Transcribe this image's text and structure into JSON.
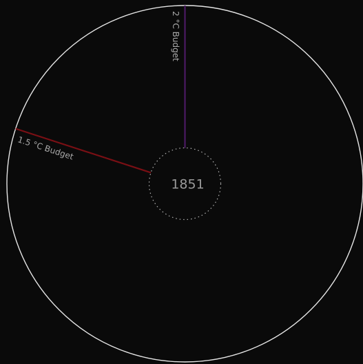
{
  "chart_data": {
    "type": "radial-budget",
    "title": "",
    "center_label": "1851",
    "outer_ring": {
      "color": "#e6e6e6"
    },
    "inner_ring": {
      "color": "#b5b5b5",
      "style": "dotted"
    },
    "budgets": [
      {
        "label": "2 °C Budget",
        "angle_deg": 0,
        "color": "#4b1a63"
      },
      {
        "label": "1.5 °C Budget",
        "angle_deg": -72,
        "color": "#7a0f14"
      }
    ]
  }
}
